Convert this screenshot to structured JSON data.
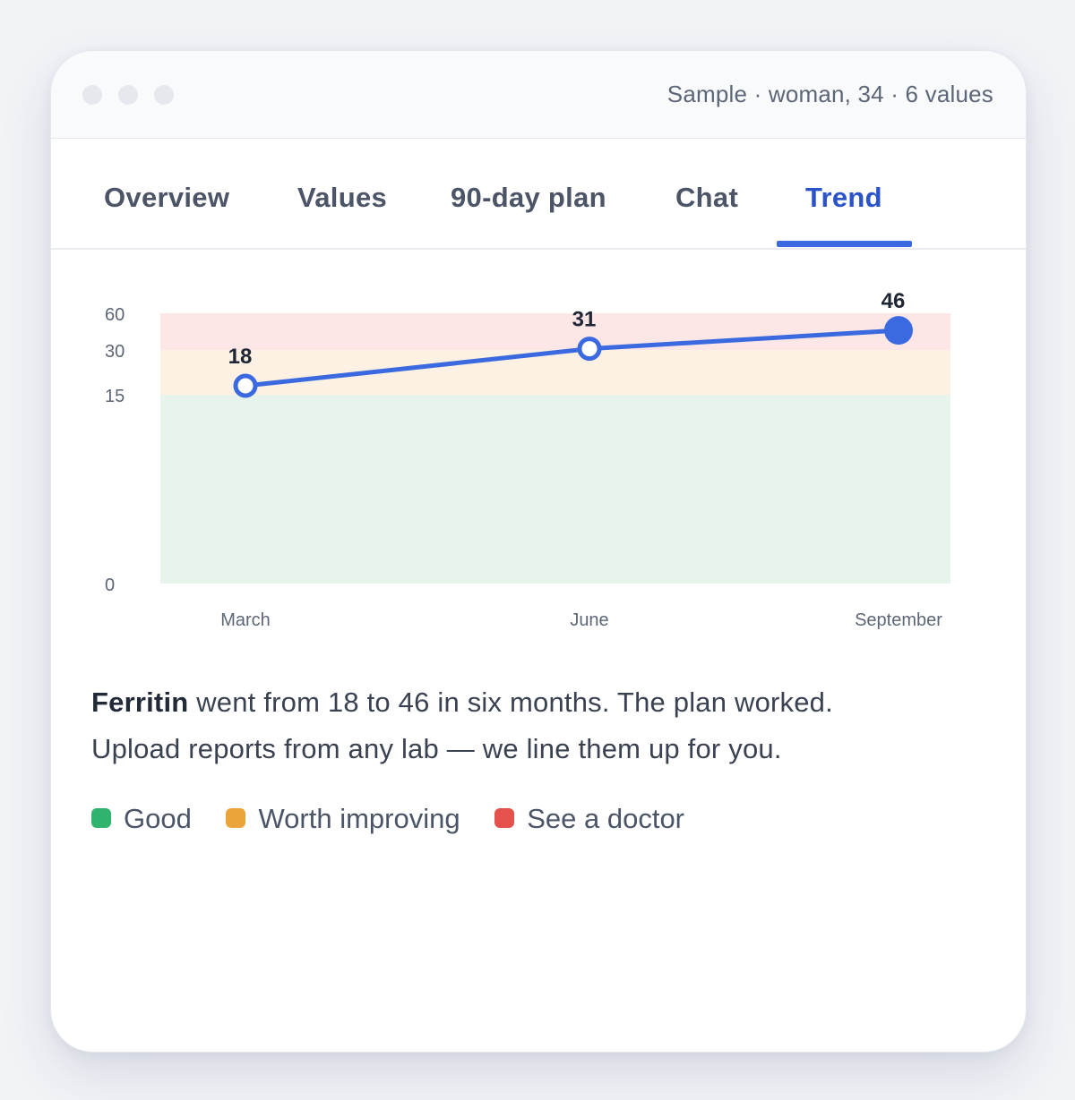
{
  "window": {
    "sample_info": "Sample · woman, 34 · 6 values"
  },
  "tabs": [
    {
      "label": "Overview"
    },
    {
      "label": "Values"
    },
    {
      "label": "90-day plan"
    },
    {
      "label": "Chat"
    },
    {
      "label": "Trend",
      "active": true
    }
  ],
  "chart_data": {
    "type": "line",
    "title": "",
    "xlabel": "",
    "ylabel": "",
    "categories": [
      "March",
      "June",
      "September"
    ],
    "series": [
      {
        "values": [
          18,
          31,
          46
        ],
        "color": "#3b6ae0"
      }
    ],
    "data_labels": [
      "18",
      "31",
      "46"
    ],
    "y_ticks": [
      "60",
      "30",
      "15",
      "0"
    ],
    "zones": [
      {
        "from": 0,
        "to": 15,
        "color": "#e6f4ec"
      },
      {
        "from": 15,
        "to": 30,
        "color": "#fcf1e2"
      },
      {
        "from": 30,
        "to": 60,
        "color": "#fce6e6"
      }
    ],
    "grid": false
  },
  "summary": {
    "bold": "Ferritin",
    "line1_rest": " went from 18 to 46 in six months. The plan worked.",
    "line2": "Upload reports from any lab — we line them up for you."
  },
  "legend": [
    {
      "label": "Good",
      "color": "#2fb36d"
    },
    {
      "label": "Worth improving",
      "color": "#eba43a"
    },
    {
      "label": "See a doctor",
      "color": "#e5524b"
    }
  ]
}
